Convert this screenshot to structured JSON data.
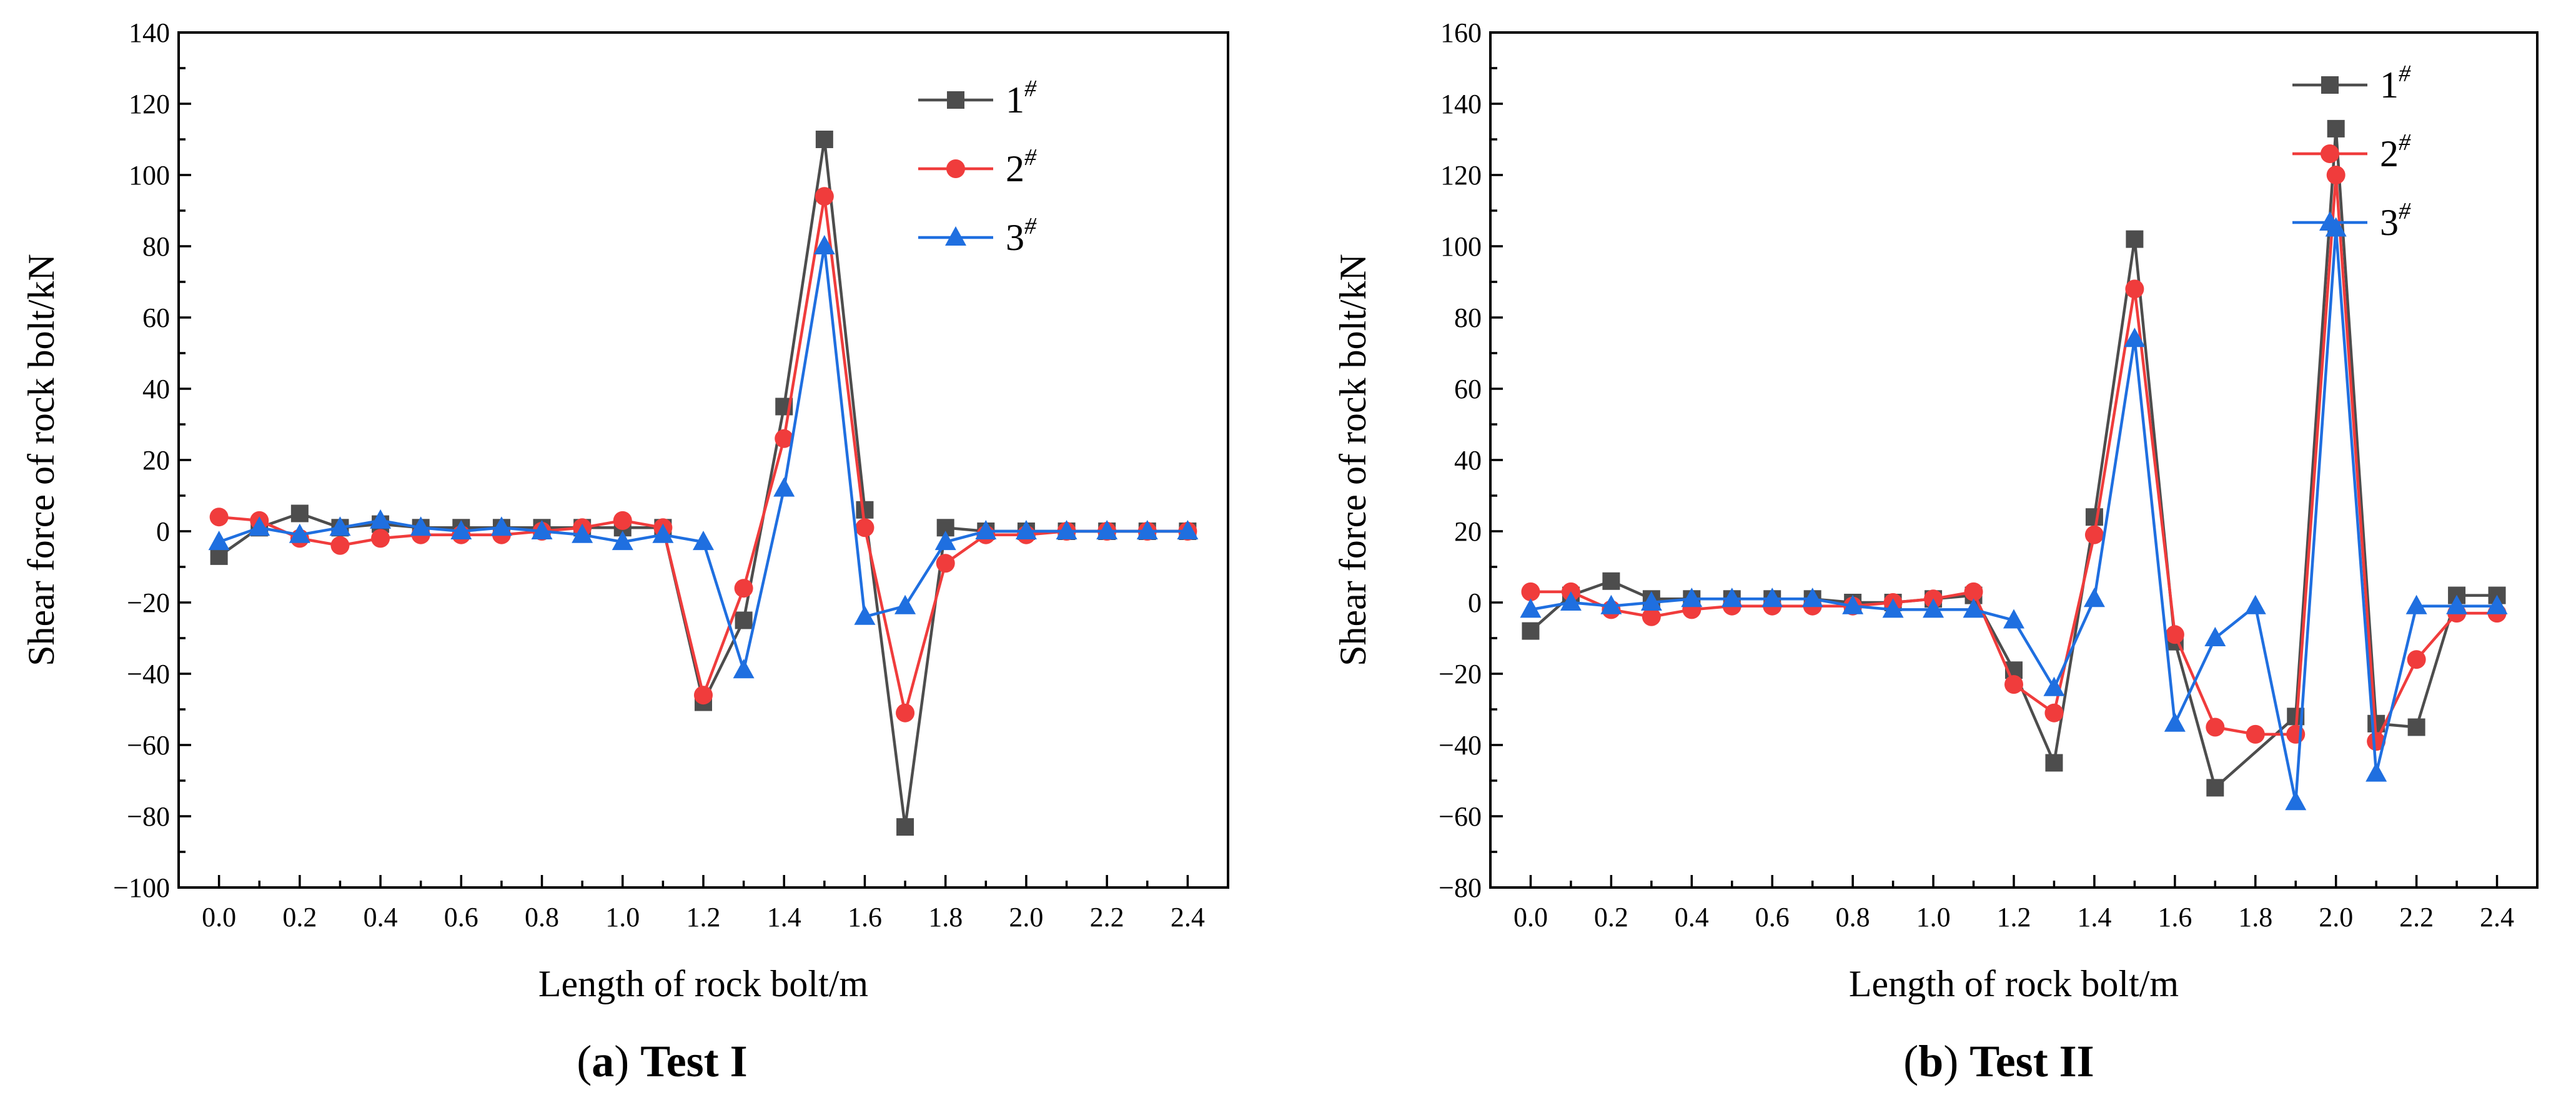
{
  "chart_data": [
    {
      "type": "line",
      "caption_letter": "a",
      "caption_text": "Test I",
      "xlabel": "Length of rock bolt/m",
      "ylabel": "Shear force of rock bolt/kN",
      "xlim": [
        -0.1,
        2.5
      ],
      "ylim": [
        -100,
        140
      ],
      "xticks": [
        "0.0",
        "0.2",
        "0.4",
        "0.6",
        "0.8",
        "1.0",
        "1.2",
        "1.4",
        "1.6",
        "1.8",
        "2.0",
        "2.2",
        "2.4"
      ],
      "yticks": [
        "−100",
        "−80",
        "−60",
        "−40",
        "−20",
        "0",
        "20",
        "40",
        "60",
        "80",
        "100",
        "120",
        "140"
      ],
      "ytick_values": [
        -100,
        -80,
        -60,
        -40,
        -20,
        0,
        20,
        40,
        60,
        80,
        100,
        120,
        140
      ],
      "x": [
        0.0,
        0.1,
        0.2,
        0.3,
        0.4,
        0.5,
        0.6,
        0.7,
        0.8,
        0.9,
        1.0,
        1.1,
        1.2,
        1.3,
        1.4,
        1.5,
        1.6,
        1.7,
        1.8,
        1.9,
        2.0,
        2.1,
        2.2,
        2.3,
        2.4
      ],
      "series": [
        {
          "name": "1",
          "sup": "#",
          "color": "#4d4d4d",
          "marker": "square",
          "values": [
            -7,
            1,
            5,
            1,
            2,
            1,
            1,
            1,
            1,
            1,
            1,
            1,
            -48,
            -25,
            35,
            110,
            6,
            -83,
            1,
            0,
            0,
            0,
            0,
            0,
            0
          ]
        },
        {
          "name": "2",
          "sup": "#",
          "color": "#f03c3c",
          "marker": "circle",
          "values": [
            4,
            3,
            -2,
            -4,
            -2,
            -1,
            -1,
            -1,
            0,
            1,
            3,
            1,
            -46,
            -16,
            26,
            94,
            1,
            -51,
            -9,
            -1,
            -1,
            0,
            0,
            0,
            0
          ]
        },
        {
          "name": "3",
          "sup": "#",
          "color": "#1f6fe0",
          "marker": "triangle",
          "values": [
            -3,
            1,
            -1,
            1,
            3,
            1,
            0,
            1,
            0,
            -1,
            -3,
            -1,
            -3,
            -39,
            12,
            80,
            -24,
            -21,
            -3,
            0,
            0,
            0,
            0,
            0,
            0
          ]
        }
      ]
    },
    {
      "type": "line",
      "caption_letter": "b",
      "caption_text": "Test II",
      "xlabel": "Length of rock bolt/m",
      "ylabel": "Shear force of rock bolt/kN",
      "xlim": [
        -0.1,
        2.5
      ],
      "ylim": [
        -80,
        160
      ],
      "xticks": [
        "0.0",
        "0.2",
        "0.4",
        "0.6",
        "0.8",
        "1.0",
        "1.2",
        "1.4",
        "1.6",
        "1.8",
        "2.0",
        "2.2",
        "2.4"
      ],
      "yticks": [
        "−80",
        "−60",
        "−40",
        "−20",
        "0",
        "20",
        "40",
        "60",
        "80",
        "100",
        "120",
        "140",
        "160"
      ],
      "ytick_values": [
        -80,
        -60,
        -40,
        -20,
        0,
        20,
        40,
        60,
        80,
        100,
        120,
        140,
        160
      ],
      "x": [
        0.0,
        0.1,
        0.2,
        0.3,
        0.4,
        0.5,
        0.6,
        0.7,
        0.8,
        0.9,
        1.0,
        1.1,
        1.2,
        1.3,
        1.4,
        1.5,
        1.6,
        1.7,
        1.8,
        1.9,
        2.0,
        2.1,
        2.2,
        2.3,
        2.4
      ],
      "series": [
        {
          "name": "1",
          "sup": "#",
          "color": "#4d4d4d",
          "marker": "square",
          "values": [
            -8,
            2,
            6,
            1,
            1,
            1,
            1,
            1,
            0,
            0,
            1,
            2,
            -19,
            -45,
            24,
            102,
            -11,
            -52,
            null,
            -32,
            133,
            -34,
            -35,
            2,
            2
          ]
        },
        {
          "name": "2",
          "sup": "#",
          "color": "#f03c3c",
          "marker": "circle",
          "values": [
            3,
            3,
            -2,
            -4,
            -2,
            -1,
            -1,
            -1,
            -1,
            0,
            1,
            3,
            -23,
            -31,
            19,
            88,
            -9,
            -35,
            -37,
            -37,
            120,
            -39,
            -16,
            -3,
            -3
          ]
        },
        {
          "name": "3",
          "sup": "#",
          "color": "#1f6fe0",
          "marker": "triangle",
          "values": [
            -2,
            0,
            -1,
            0,
            1,
            1,
            1,
            1,
            -1,
            -2,
            -2,
            -2,
            -5,
            -24,
            1,
            74,
            -34,
            -10,
            -1,
            -56,
            105,
            -48,
            -1,
            -1,
            -1
          ]
        }
      ]
    }
  ]
}
